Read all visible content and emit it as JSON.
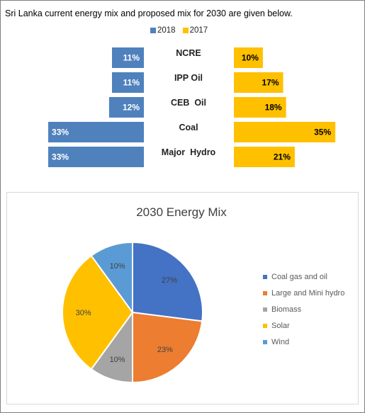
{
  "intro_text": "Sri Lanka current energy mix and proposed mix for 2030 are  given below.",
  "colors": {
    "series_2018": "#4f81bd",
    "series_2017": "#ffc000",
    "pie": [
      "#4472c4",
      "#ed7d31",
      "#a5a5a5",
      "#ffc000",
      "#5b9bd5"
    ]
  },
  "chart_data": [
    {
      "type": "bar",
      "orientation": "horizontal-butterfly",
      "categories": [
        "NCRE",
        "IPP Oil",
        "CEB  Oil",
        "Coal",
        "Major  Hydro"
      ],
      "series": [
        {
          "name": "2018",
          "values": [
            11,
            11,
            12,
            33,
            33
          ],
          "labels": [
            "11%",
            "11%",
            "12%",
            "33%",
            "33%"
          ]
        },
        {
          "name": "2017",
          "values": [
            10,
            17,
            18,
            35,
            21
          ],
          "labels": [
            "10%",
            "17%",
            "18%",
            "35%",
            "21%"
          ]
        }
      ],
      "legend_position": "top"
    },
    {
      "type": "pie",
      "title": "2030 Energy Mix",
      "categories": [
        "Coal gas and oil",
        "Large and Mini hydro",
        "Biomass",
        "Solar",
        "Wind"
      ],
      "values": [
        27,
        23,
        10,
        30,
        10
      ],
      "labels": [
        "27%",
        "23%",
        "10%",
        "30%",
        "10%"
      ],
      "legend_position": "right"
    }
  ]
}
